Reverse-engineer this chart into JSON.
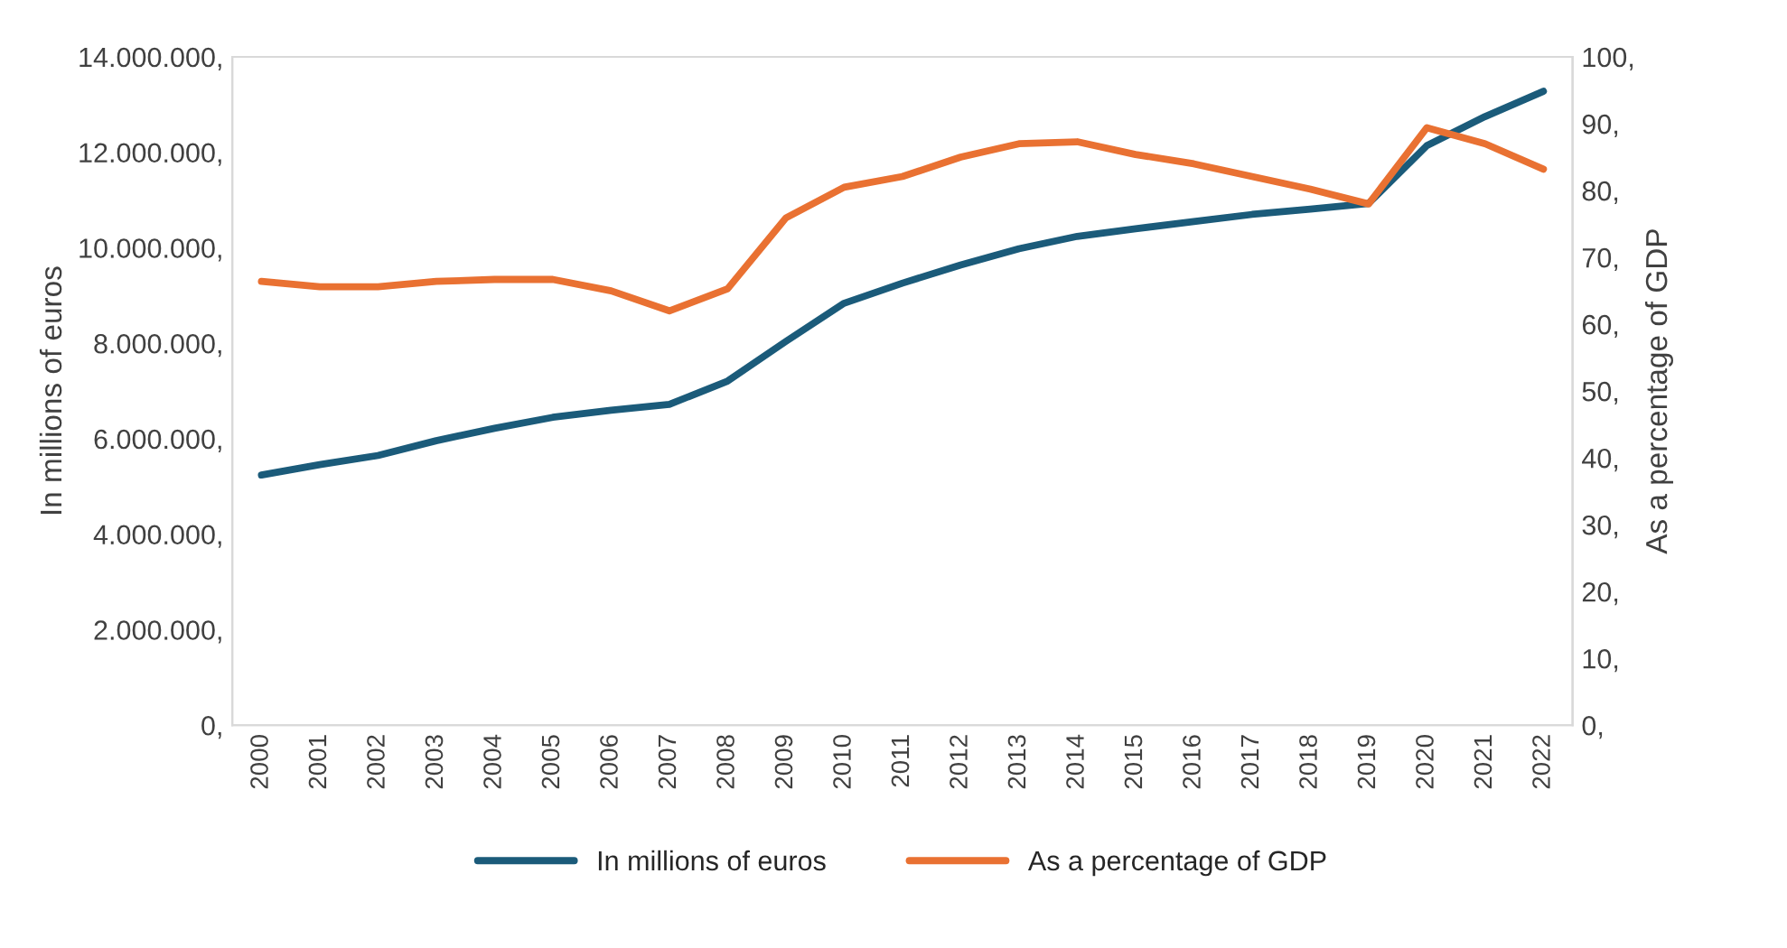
{
  "chart_data": {
    "type": "line",
    "categories": [
      "2000",
      "2001",
      "2002",
      "2003",
      "2004",
      "2005",
      "2006",
      "2007",
      "2008",
      "2009",
      "2010",
      "2011",
      "2012",
      "2013",
      "2014",
      "2015",
      "2016",
      "2017",
      "2018",
      "2019",
      "2020",
      "2021",
      "2022"
    ],
    "series": [
      {
        "name": "In millions of euros",
        "color": "#1b5b7a",
        "values": [
          5240000,
          5460000,
          5650000,
          5960000,
          6220000,
          6450000,
          6600000,
          6720000,
          7210000,
          8040000,
          8840000,
          9260000,
          9640000,
          9980000,
          10240000,
          10400000,
          10550000,
          10700000,
          10810000,
          10930000,
          12140000,
          12750000,
          13280000
        ]
      },
      {
        "name": "As a percentage of GDP",
        "color": "#e97132",
        "axis": "y2",
        "values": [
          66.4,
          65.6,
          65.6,
          66.4,
          66.7,
          66.7,
          65.0,
          62.0,
          65.3,
          75.9,
          80.5,
          82.1,
          85.0,
          87.0,
          87.3,
          85.4,
          84.0,
          82.1,
          80.2,
          78.0,
          89.4,
          87.0,
          83.2
        ]
      }
    ],
    "ylabel": "In millions of euros",
    "y2label": "As a percentage of GDP",
    "ylim": [
      0,
      14000000
    ],
    "yticks": [
      {
        "value": 0,
        "label": "0,"
      },
      {
        "value": 2000000,
        "label": "2.000.000,"
      },
      {
        "value": 4000000,
        "label": "4.000.000,"
      },
      {
        "value": 6000000,
        "label": "6.000.000,"
      },
      {
        "value": 8000000,
        "label": "8.000.000,"
      },
      {
        "value": 10000000,
        "label": "10.000.000,"
      },
      {
        "value": 12000000,
        "label": "12.000.000,"
      },
      {
        "value": 14000000,
        "label": "14.000.000,"
      }
    ],
    "y2lim": [
      0,
      100
    ],
    "y2ticks": [
      {
        "value": 0,
        "label": "0,"
      },
      {
        "value": 10,
        "label": "10,"
      },
      {
        "value": 20,
        "label": "20,"
      },
      {
        "value": 30,
        "label": "30,"
      },
      {
        "value": 40,
        "label": "40,"
      },
      {
        "value": 50,
        "label": "50,"
      },
      {
        "value": 60,
        "label": "60,"
      },
      {
        "value": 70,
        "label": "70,"
      },
      {
        "value": 80,
        "label": "80,"
      },
      {
        "value": 90,
        "label": "90,"
      },
      {
        "value": 100,
        "label": "100,"
      }
    ],
    "legend": "bottom",
    "grid": false,
    "line_style": "solid",
    "marker": "none"
  }
}
